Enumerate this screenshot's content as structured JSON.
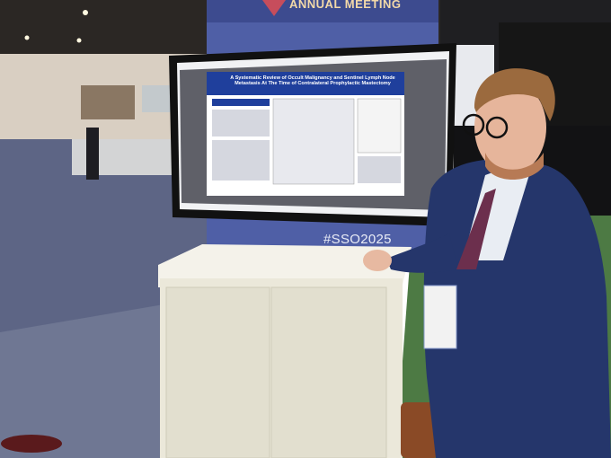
{
  "banner": {
    "text": "ANNUAL MEETING"
  },
  "screen": {
    "poster_title": "A Systematic Review of Occult Malignancy and Sentinel Lymph Node Metastasis At The Time of Contralateral Prophylactic Mastectomy"
  },
  "backdrop": {
    "hashtag": "#SSO2025"
  }
}
